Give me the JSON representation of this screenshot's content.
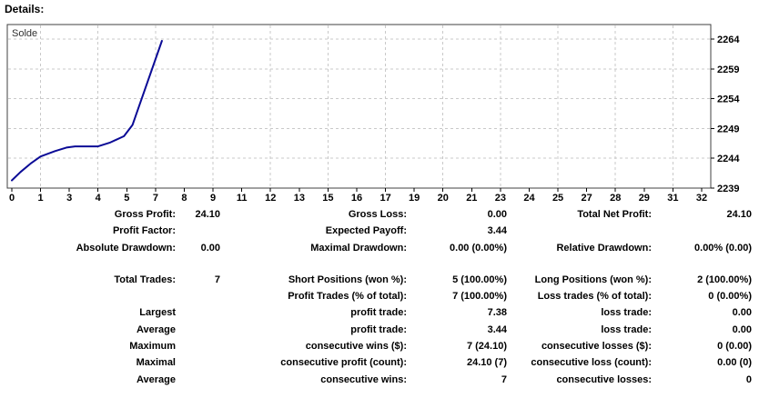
{
  "heading": "Details:",
  "chart_data": {
    "type": "line",
    "title": "Solde",
    "legend_label": "Solde",
    "x_tick_labels": [
      "0",
      "1",
      "3",
      "4",
      "5",
      "7",
      "8",
      "9",
      "11",
      "12",
      "13",
      "15",
      "16",
      "17",
      "19",
      "20",
      "21",
      "23",
      "24",
      "25",
      "27",
      "28",
      "29",
      "31",
      "32"
    ],
    "y_tick_labels": [
      "2264",
      "2259",
      "2254",
      "2249",
      "2244",
      "2239"
    ],
    "ylim": [
      2239,
      2264
    ],
    "grid": true,
    "series": [
      {
        "name": "Solde",
        "x_unit": "x-axis tick index",
        "color": "#0b0b96",
        "points": [
          [
            0,
            2240.3
          ],
          [
            0.3,
            2241.7
          ],
          [
            0.65,
            2243.1
          ],
          [
            1.0,
            2244.3
          ],
          [
            1.5,
            2245.2
          ],
          [
            1.9,
            2245.8
          ],
          [
            2.2,
            2246.0
          ],
          [
            3.0,
            2246.0
          ],
          [
            3.4,
            2246.6
          ],
          [
            3.9,
            2247.7
          ],
          [
            4.2,
            2249.6
          ],
          [
            5.22,
            2263.7
          ]
        ]
      }
    ],
    "colors": {
      "grid": "#c9c9c9",
      "border": "#404040",
      "background": "#ffffff",
      "label": "#303030",
      "axis_text": "#000000"
    }
  },
  "stats": {
    "rows": [
      [
        "Gross Profit:",
        "24.10",
        "Gross Loss:",
        "0.00",
        "Total Net Profit:",
        "24.10"
      ],
      [
        "Profit Factor:",
        "",
        "Expected Payoff:",
        "3.44",
        "",
        ""
      ],
      [
        "Absolute Drawdown:",
        "0.00",
        "Maximal Drawdown:",
        "0.00 (0.00%)",
        "Relative Drawdown:",
        "0.00% (0.00)"
      ],
      [
        "Total Trades:",
        "7",
        "Short Positions (won %):",
        "5 (100.00%)",
        "Long Positions (won %):",
        "2 (100.00%)"
      ],
      [
        "",
        "",
        "Profit Trades (% of total):",
        "7 (100.00%)",
        "Loss trades (% of total):",
        "0 (0.00%)"
      ],
      [
        "Largest",
        "",
        "profit trade:",
        "7.38",
        "loss trade:",
        "0.00"
      ],
      [
        "Average",
        "",
        "profit trade:",
        "3.44",
        "loss trade:",
        "0.00"
      ],
      [
        "Maximum",
        "",
        "consecutive wins ($):",
        "7 (24.10)",
        "consecutive losses ($):",
        "0 (0.00)"
      ],
      [
        "Maximal",
        "",
        "consecutive profit (count):",
        "24.10 (7)",
        "consecutive loss (count):",
        "0.00 (0)"
      ],
      [
        "Average",
        "",
        "consecutive wins:",
        "7",
        "consecutive losses:",
        "0"
      ]
    ]
  }
}
